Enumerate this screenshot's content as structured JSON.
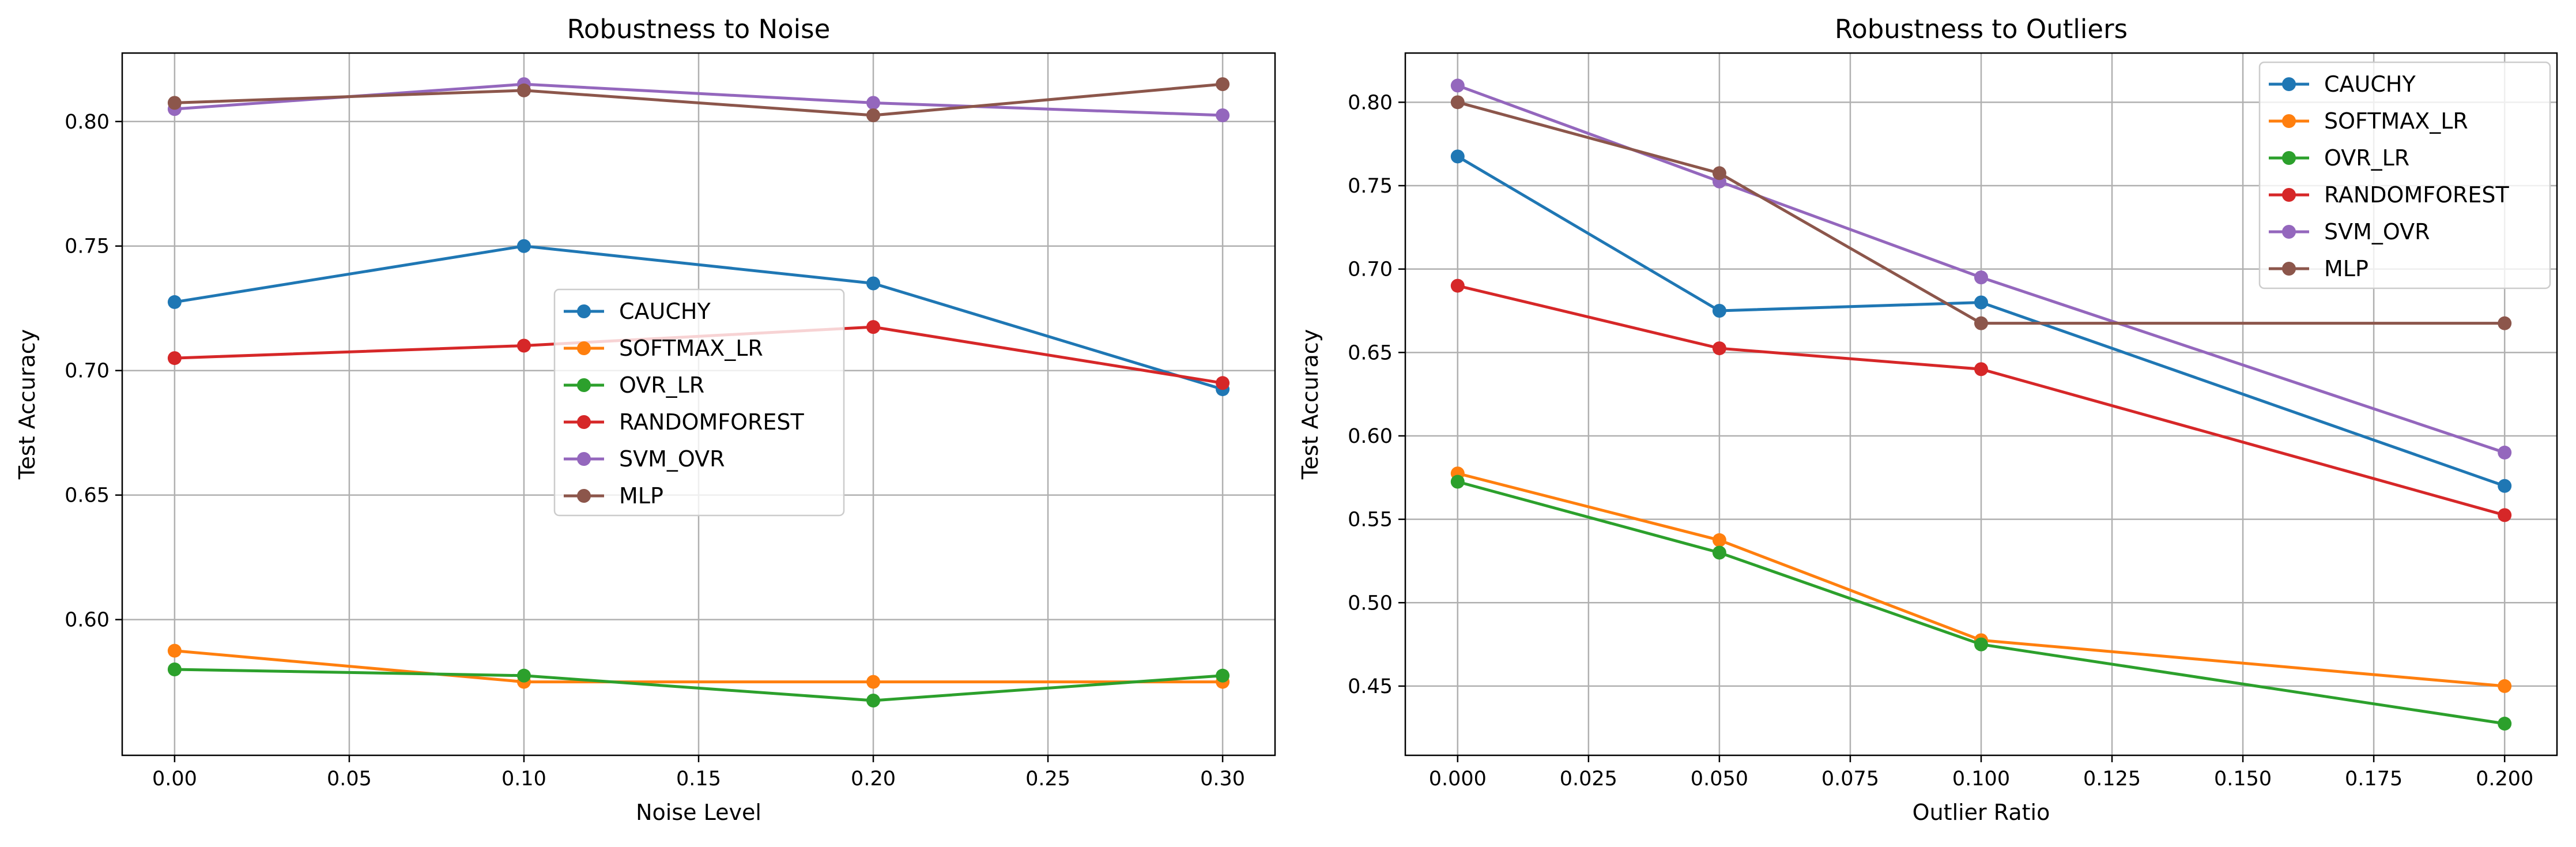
{
  "chart_data": [
    {
      "type": "line",
      "title": "Robustness to Noise",
      "xlabel": "Noise Level",
      "ylabel": "Test Accuracy",
      "x": [
        0.0,
        0.1,
        0.2,
        0.3
      ],
      "xlim": [
        -0.015,
        0.315
      ],
      "ylim": [
        0.5455,
        0.8275
      ],
      "xticks": [
        0.0,
        0.05,
        0.1,
        0.15,
        0.2,
        0.25,
        0.3
      ],
      "xtick_labels": [
        "0.00",
        "0.05",
        "0.10",
        "0.15",
        "0.20",
        "0.25",
        "0.30"
      ],
      "yticks": [
        0.6,
        0.65,
        0.7,
        0.75,
        0.8
      ],
      "ytick_labels": [
        "0.60",
        "0.65",
        "0.70",
        "0.75",
        "0.80"
      ],
      "grid": true,
      "legend_position": "center",
      "series": [
        {
          "name": "CAUCHY",
          "color": "#1f77b4",
          "values": [
            0.7275,
            0.75,
            0.735,
            0.6925
          ]
        },
        {
          "name": "SOFTMAX_LR",
          "color": "#ff7f0e",
          "values": [
            0.5875,
            0.575,
            0.575,
            0.575
          ]
        },
        {
          "name": "OVR_LR",
          "color": "#2ca02c",
          "values": [
            0.58,
            0.5775,
            0.5675,
            0.5775
          ]
        },
        {
          "name": "RANDOMFOREST",
          "color": "#d62728",
          "values": [
            0.705,
            0.71,
            0.7175,
            0.695
          ]
        },
        {
          "name": "SVM_OVR",
          "color": "#9467bd",
          "values": [
            0.805,
            0.815,
            0.8075,
            0.8025
          ]
        },
        {
          "name": "MLP",
          "color": "#8c564b",
          "values": [
            0.8075,
            0.8125,
            0.8025,
            0.815
          ]
        }
      ]
    },
    {
      "type": "line",
      "title": "Robustness to Outliers",
      "xlabel": "Outlier Ratio",
      "ylabel": "Test Accuracy",
      "x": [
        0.0,
        0.05,
        0.1,
        0.2
      ],
      "xlim": [
        -0.01,
        0.21
      ],
      "ylim": [
        0.4085,
        0.8295
      ],
      "xticks": [
        0.0,
        0.025,
        0.05,
        0.075,
        0.1,
        0.125,
        0.15,
        0.175,
        0.2
      ],
      "xtick_labels": [
        "0.000",
        "0.025",
        "0.050",
        "0.075",
        "0.100",
        "0.125",
        "0.150",
        "0.175",
        "0.200"
      ],
      "yticks": [
        0.45,
        0.5,
        0.55,
        0.6,
        0.65,
        0.7,
        0.75,
        0.8
      ],
      "ytick_labels": [
        "0.45",
        "0.50",
        "0.55",
        "0.60",
        "0.65",
        "0.70",
        "0.75",
        "0.80"
      ],
      "grid": true,
      "legend_position": "upper right",
      "series": [
        {
          "name": "CAUCHY",
          "color": "#1f77b4",
          "values": [
            0.7675,
            0.675,
            0.68,
            0.57
          ]
        },
        {
          "name": "SOFTMAX_LR",
          "color": "#ff7f0e",
          "values": [
            0.5775,
            0.5375,
            0.4775,
            0.45
          ]
        },
        {
          "name": "OVR_LR",
          "color": "#2ca02c",
          "values": [
            0.5725,
            0.53,
            0.475,
            0.4275
          ]
        },
        {
          "name": "RANDOMFOREST",
          "color": "#d62728",
          "values": [
            0.69,
            0.6525,
            0.64,
            0.5525
          ]
        },
        {
          "name": "SVM_OVR",
          "color": "#9467bd",
          "values": [
            0.81,
            0.7525,
            0.695,
            0.59
          ]
        },
        {
          "name": "MLP",
          "color": "#8c564b",
          "values": [
            0.8,
            0.7575,
            0.6675,
            0.6675
          ]
        }
      ]
    }
  ]
}
